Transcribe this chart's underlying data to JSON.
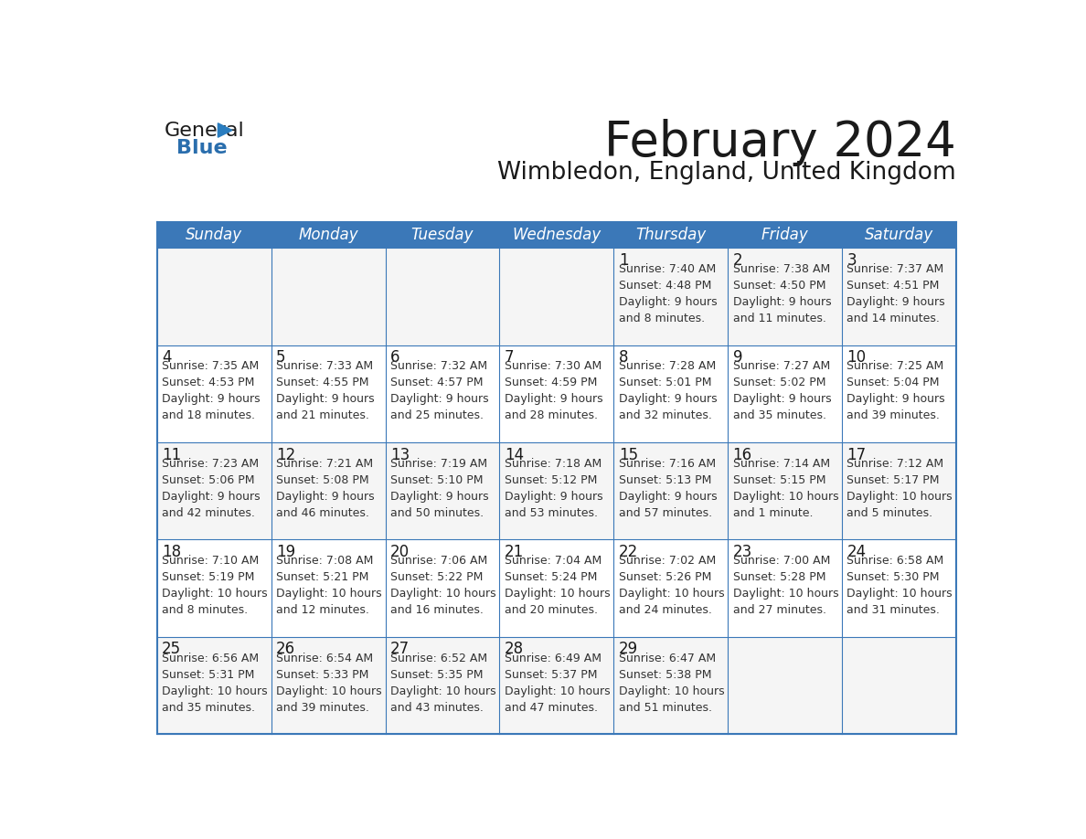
{
  "title": "February 2024",
  "subtitle": "Wimbledon, England, United Kingdom",
  "header_bg_color": "#3b78b8",
  "header_text_color": "#ffffff",
  "border_color": "#3b78b8",
  "title_color": "#1a1a1a",
  "subtitle_color": "#1a1a1a",
  "day_number_color": "#1a1a1a",
  "cell_text_color": "#333333",
  "row_colors": [
    "#f5f5f5",
    "#ffffff",
    "#f5f5f5",
    "#ffffff",
    "#f5f5f5"
  ],
  "days_of_week": [
    "Sunday",
    "Monday",
    "Tuesday",
    "Wednesday",
    "Thursday",
    "Friday",
    "Saturday"
  ],
  "weeks": [
    [
      {
        "day": null,
        "info": null
      },
      {
        "day": null,
        "info": null
      },
      {
        "day": null,
        "info": null
      },
      {
        "day": null,
        "info": null
      },
      {
        "day": 1,
        "info": "Sunrise: 7:40 AM\nSunset: 4:48 PM\nDaylight: 9 hours\nand 8 minutes."
      },
      {
        "day": 2,
        "info": "Sunrise: 7:38 AM\nSunset: 4:50 PM\nDaylight: 9 hours\nand 11 minutes."
      },
      {
        "day": 3,
        "info": "Sunrise: 7:37 AM\nSunset: 4:51 PM\nDaylight: 9 hours\nand 14 minutes."
      }
    ],
    [
      {
        "day": 4,
        "info": "Sunrise: 7:35 AM\nSunset: 4:53 PM\nDaylight: 9 hours\nand 18 minutes."
      },
      {
        "day": 5,
        "info": "Sunrise: 7:33 AM\nSunset: 4:55 PM\nDaylight: 9 hours\nand 21 minutes."
      },
      {
        "day": 6,
        "info": "Sunrise: 7:32 AM\nSunset: 4:57 PM\nDaylight: 9 hours\nand 25 minutes."
      },
      {
        "day": 7,
        "info": "Sunrise: 7:30 AM\nSunset: 4:59 PM\nDaylight: 9 hours\nand 28 minutes."
      },
      {
        "day": 8,
        "info": "Sunrise: 7:28 AM\nSunset: 5:01 PM\nDaylight: 9 hours\nand 32 minutes."
      },
      {
        "day": 9,
        "info": "Sunrise: 7:27 AM\nSunset: 5:02 PM\nDaylight: 9 hours\nand 35 minutes."
      },
      {
        "day": 10,
        "info": "Sunrise: 7:25 AM\nSunset: 5:04 PM\nDaylight: 9 hours\nand 39 minutes."
      }
    ],
    [
      {
        "day": 11,
        "info": "Sunrise: 7:23 AM\nSunset: 5:06 PM\nDaylight: 9 hours\nand 42 minutes."
      },
      {
        "day": 12,
        "info": "Sunrise: 7:21 AM\nSunset: 5:08 PM\nDaylight: 9 hours\nand 46 minutes."
      },
      {
        "day": 13,
        "info": "Sunrise: 7:19 AM\nSunset: 5:10 PM\nDaylight: 9 hours\nand 50 minutes."
      },
      {
        "day": 14,
        "info": "Sunrise: 7:18 AM\nSunset: 5:12 PM\nDaylight: 9 hours\nand 53 minutes."
      },
      {
        "day": 15,
        "info": "Sunrise: 7:16 AM\nSunset: 5:13 PM\nDaylight: 9 hours\nand 57 minutes."
      },
      {
        "day": 16,
        "info": "Sunrise: 7:14 AM\nSunset: 5:15 PM\nDaylight: 10 hours\nand 1 minute."
      },
      {
        "day": 17,
        "info": "Sunrise: 7:12 AM\nSunset: 5:17 PM\nDaylight: 10 hours\nand 5 minutes."
      }
    ],
    [
      {
        "day": 18,
        "info": "Sunrise: 7:10 AM\nSunset: 5:19 PM\nDaylight: 10 hours\nand 8 minutes."
      },
      {
        "day": 19,
        "info": "Sunrise: 7:08 AM\nSunset: 5:21 PM\nDaylight: 10 hours\nand 12 minutes."
      },
      {
        "day": 20,
        "info": "Sunrise: 7:06 AM\nSunset: 5:22 PM\nDaylight: 10 hours\nand 16 minutes."
      },
      {
        "day": 21,
        "info": "Sunrise: 7:04 AM\nSunset: 5:24 PM\nDaylight: 10 hours\nand 20 minutes."
      },
      {
        "day": 22,
        "info": "Sunrise: 7:02 AM\nSunset: 5:26 PM\nDaylight: 10 hours\nand 24 minutes."
      },
      {
        "day": 23,
        "info": "Sunrise: 7:00 AM\nSunset: 5:28 PM\nDaylight: 10 hours\nand 27 minutes."
      },
      {
        "day": 24,
        "info": "Sunrise: 6:58 AM\nSunset: 5:30 PM\nDaylight: 10 hours\nand 31 minutes."
      }
    ],
    [
      {
        "day": 25,
        "info": "Sunrise: 6:56 AM\nSunset: 5:31 PM\nDaylight: 10 hours\nand 35 minutes."
      },
      {
        "day": 26,
        "info": "Sunrise: 6:54 AM\nSunset: 5:33 PM\nDaylight: 10 hours\nand 39 minutes."
      },
      {
        "day": 27,
        "info": "Sunrise: 6:52 AM\nSunset: 5:35 PM\nDaylight: 10 hours\nand 43 minutes."
      },
      {
        "day": 28,
        "info": "Sunrise: 6:49 AM\nSunset: 5:37 PM\nDaylight: 10 hours\nand 47 minutes."
      },
      {
        "day": 29,
        "info": "Sunrise: 6:47 AM\nSunset: 5:38 PM\nDaylight: 10 hours\nand 51 minutes."
      },
      {
        "day": null,
        "info": null
      },
      {
        "day": null,
        "info": null
      }
    ]
  ],
  "logo_blue_color": "#2a6ead",
  "logo_triangle_color": "#2a7dbf",
  "figsize": [
    11.88,
    9.18
  ],
  "dpi": 100
}
